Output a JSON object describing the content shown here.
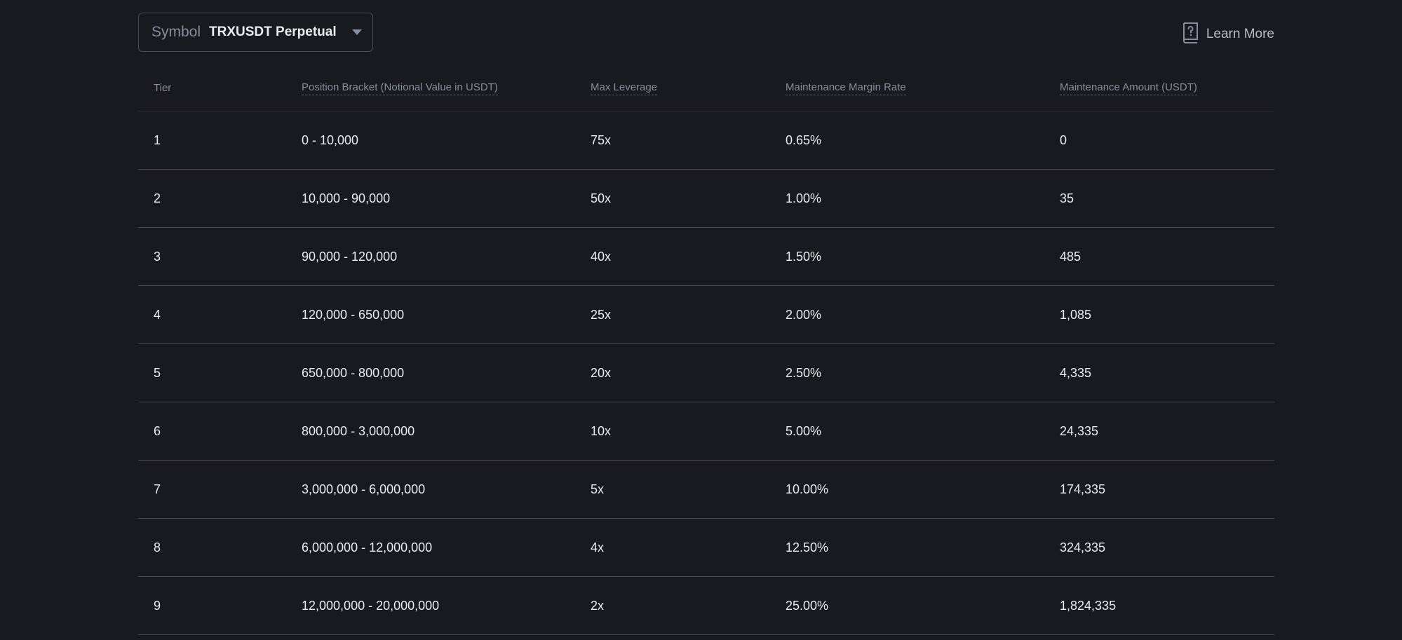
{
  "symbol_selector": {
    "label": "Symbol",
    "value": "TRXUSDT Perpetual",
    "caret_icon": "caret-down-icon"
  },
  "learn_more": {
    "label": "Learn More",
    "icon": "help-book-icon"
  },
  "table": {
    "headers": [
      "Tier",
      "Position Bracket (Notional Value in USDT)",
      "Max Leverage",
      "Maintenance Margin Rate",
      "Maintenance Amount (USDT)"
    ],
    "rows": [
      [
        "1",
        "0 - 10,000",
        "75x",
        "0.65%",
        "0"
      ],
      [
        "2",
        "10,000 - 90,000",
        "50x",
        "1.00%",
        "35"
      ],
      [
        "3",
        "90,000 - 120,000",
        "40x",
        "1.50%",
        "485"
      ],
      [
        "4",
        "120,000 - 650,000",
        "25x",
        "2.00%",
        "1,085"
      ],
      [
        "5",
        "650,000 - 800,000",
        "20x",
        "2.50%",
        "4,335"
      ],
      [
        "6",
        "800,000 - 3,000,000",
        "10x",
        "5.00%",
        "24,335"
      ],
      [
        "7",
        "3,000,000 - 6,000,000",
        "5x",
        "10.00%",
        "174,335"
      ],
      [
        "8",
        "6,000,000 - 12,000,000",
        "4x",
        "12.50%",
        "324,335"
      ],
      [
        "9",
        "12,000,000 - 20,000,000",
        "2x",
        "25.00%",
        "1,824,335"
      ]
    ]
  }
}
